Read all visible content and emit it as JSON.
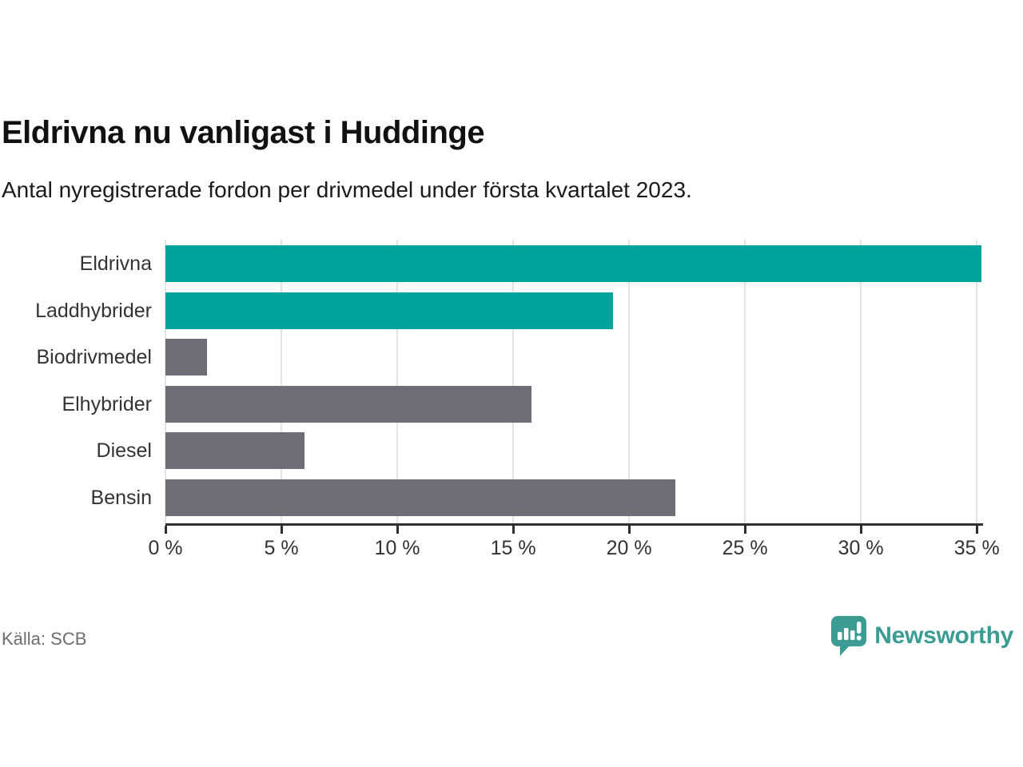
{
  "header": {
    "title": "Eldrivna nu vanligast i Huddinge",
    "subtitle": "Antal nyregistrerade fordon per drivmedel under första kvartalet 2023."
  },
  "chart_data": {
    "type": "bar",
    "orientation": "horizontal",
    "categories": [
      "Eldrivna",
      "Laddhybrider",
      "Biodrivmedel",
      "Elhybrider",
      "Diesel",
      "Bensin"
    ],
    "values": [
      35.2,
      19.3,
      1.8,
      15.8,
      6.0,
      22.0
    ],
    "unit": "%",
    "bar_colors": [
      "#00a39c",
      "#00a39c",
      "#6f6e77",
      "#6f6e77",
      "#6f6e77",
      "#6f6e77"
    ],
    "highlight_color": "#00a39c",
    "default_color": "#6f6e77",
    "xlim": [
      0,
      35.2
    ],
    "x_ticks": [
      0,
      5,
      10,
      15,
      20,
      25,
      30,
      35
    ],
    "x_tick_labels": [
      "0 %",
      "5 %",
      "10 %",
      "15 %",
      "20 %",
      "25 %",
      "30 %",
      "35 %"
    ],
    "grid": "vertical-only",
    "gridline_color": "#e3e3e3",
    "axis_color": "#2f2f2f",
    "legend": "none",
    "title": "Eldrivna nu vanligast i Huddinge",
    "xlabel": "",
    "ylabel": ""
  },
  "footer": {
    "source": "Källa: SCB",
    "brand": "Newsworthy",
    "brand_color": "#3b9c94",
    "logo_icon": "bar-chart-speech-bubble"
  }
}
